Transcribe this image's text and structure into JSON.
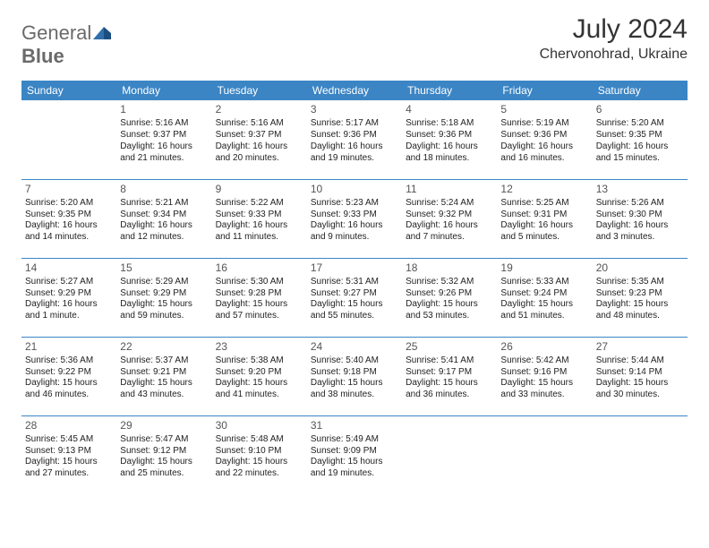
{
  "logo": {
    "word1": "General",
    "word2": "Blue"
  },
  "title": "July 2024",
  "location": "Chervonohrad, Ukraine",
  "colors": {
    "header_bg": "#3b85c5",
    "header_text": "#ffffff",
    "cell_border": "#3b85c5",
    "body_text": "#222222",
    "logo_gray": "#6a6a6a",
    "logo_blue": "#2f6fab"
  },
  "day_headers": [
    "Sunday",
    "Monday",
    "Tuesday",
    "Wednesday",
    "Thursday",
    "Friday",
    "Saturday"
  ],
  "weeks": [
    [
      null,
      {
        "n": "1",
        "sr": "Sunrise: 5:16 AM",
        "ss": "Sunset: 9:37 PM",
        "dl": "Daylight: 16 hours and 21 minutes."
      },
      {
        "n": "2",
        "sr": "Sunrise: 5:16 AM",
        "ss": "Sunset: 9:37 PM",
        "dl": "Daylight: 16 hours and 20 minutes."
      },
      {
        "n": "3",
        "sr": "Sunrise: 5:17 AM",
        "ss": "Sunset: 9:36 PM",
        "dl": "Daylight: 16 hours and 19 minutes."
      },
      {
        "n": "4",
        "sr": "Sunrise: 5:18 AM",
        "ss": "Sunset: 9:36 PM",
        "dl": "Daylight: 16 hours and 18 minutes."
      },
      {
        "n": "5",
        "sr": "Sunrise: 5:19 AM",
        "ss": "Sunset: 9:36 PM",
        "dl": "Daylight: 16 hours and 16 minutes."
      },
      {
        "n": "6",
        "sr": "Sunrise: 5:20 AM",
        "ss": "Sunset: 9:35 PM",
        "dl": "Daylight: 16 hours and 15 minutes."
      }
    ],
    [
      {
        "n": "7",
        "sr": "Sunrise: 5:20 AM",
        "ss": "Sunset: 9:35 PM",
        "dl": "Daylight: 16 hours and 14 minutes."
      },
      {
        "n": "8",
        "sr": "Sunrise: 5:21 AM",
        "ss": "Sunset: 9:34 PM",
        "dl": "Daylight: 16 hours and 12 minutes."
      },
      {
        "n": "9",
        "sr": "Sunrise: 5:22 AM",
        "ss": "Sunset: 9:33 PM",
        "dl": "Daylight: 16 hours and 11 minutes."
      },
      {
        "n": "10",
        "sr": "Sunrise: 5:23 AM",
        "ss": "Sunset: 9:33 PM",
        "dl": "Daylight: 16 hours and 9 minutes."
      },
      {
        "n": "11",
        "sr": "Sunrise: 5:24 AM",
        "ss": "Sunset: 9:32 PM",
        "dl": "Daylight: 16 hours and 7 minutes."
      },
      {
        "n": "12",
        "sr": "Sunrise: 5:25 AM",
        "ss": "Sunset: 9:31 PM",
        "dl": "Daylight: 16 hours and 5 minutes."
      },
      {
        "n": "13",
        "sr": "Sunrise: 5:26 AM",
        "ss": "Sunset: 9:30 PM",
        "dl": "Daylight: 16 hours and 3 minutes."
      }
    ],
    [
      {
        "n": "14",
        "sr": "Sunrise: 5:27 AM",
        "ss": "Sunset: 9:29 PM",
        "dl": "Daylight: 16 hours and 1 minute."
      },
      {
        "n": "15",
        "sr": "Sunrise: 5:29 AM",
        "ss": "Sunset: 9:29 PM",
        "dl": "Daylight: 15 hours and 59 minutes."
      },
      {
        "n": "16",
        "sr": "Sunrise: 5:30 AM",
        "ss": "Sunset: 9:28 PM",
        "dl": "Daylight: 15 hours and 57 minutes."
      },
      {
        "n": "17",
        "sr": "Sunrise: 5:31 AM",
        "ss": "Sunset: 9:27 PM",
        "dl": "Daylight: 15 hours and 55 minutes."
      },
      {
        "n": "18",
        "sr": "Sunrise: 5:32 AM",
        "ss": "Sunset: 9:26 PM",
        "dl": "Daylight: 15 hours and 53 minutes."
      },
      {
        "n": "19",
        "sr": "Sunrise: 5:33 AM",
        "ss": "Sunset: 9:24 PM",
        "dl": "Daylight: 15 hours and 51 minutes."
      },
      {
        "n": "20",
        "sr": "Sunrise: 5:35 AM",
        "ss": "Sunset: 9:23 PM",
        "dl": "Daylight: 15 hours and 48 minutes."
      }
    ],
    [
      {
        "n": "21",
        "sr": "Sunrise: 5:36 AM",
        "ss": "Sunset: 9:22 PM",
        "dl": "Daylight: 15 hours and 46 minutes."
      },
      {
        "n": "22",
        "sr": "Sunrise: 5:37 AM",
        "ss": "Sunset: 9:21 PM",
        "dl": "Daylight: 15 hours and 43 minutes."
      },
      {
        "n": "23",
        "sr": "Sunrise: 5:38 AM",
        "ss": "Sunset: 9:20 PM",
        "dl": "Daylight: 15 hours and 41 minutes."
      },
      {
        "n": "24",
        "sr": "Sunrise: 5:40 AM",
        "ss": "Sunset: 9:18 PM",
        "dl": "Daylight: 15 hours and 38 minutes."
      },
      {
        "n": "25",
        "sr": "Sunrise: 5:41 AM",
        "ss": "Sunset: 9:17 PM",
        "dl": "Daylight: 15 hours and 36 minutes."
      },
      {
        "n": "26",
        "sr": "Sunrise: 5:42 AM",
        "ss": "Sunset: 9:16 PM",
        "dl": "Daylight: 15 hours and 33 minutes."
      },
      {
        "n": "27",
        "sr": "Sunrise: 5:44 AM",
        "ss": "Sunset: 9:14 PM",
        "dl": "Daylight: 15 hours and 30 minutes."
      }
    ],
    [
      {
        "n": "28",
        "sr": "Sunrise: 5:45 AM",
        "ss": "Sunset: 9:13 PM",
        "dl": "Daylight: 15 hours and 27 minutes."
      },
      {
        "n": "29",
        "sr": "Sunrise: 5:47 AM",
        "ss": "Sunset: 9:12 PM",
        "dl": "Daylight: 15 hours and 25 minutes."
      },
      {
        "n": "30",
        "sr": "Sunrise: 5:48 AM",
        "ss": "Sunset: 9:10 PM",
        "dl": "Daylight: 15 hours and 22 minutes."
      },
      {
        "n": "31",
        "sr": "Sunrise: 5:49 AM",
        "ss": "Sunset: 9:09 PM",
        "dl": "Daylight: 15 hours and 19 minutes."
      },
      null,
      null,
      null
    ]
  ]
}
